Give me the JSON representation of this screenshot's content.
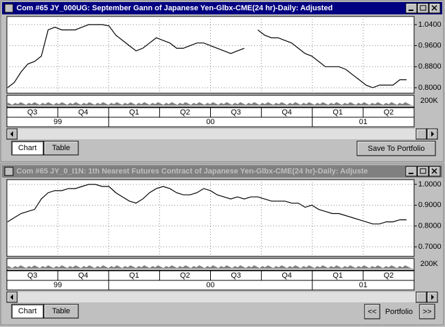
{
  "windows": [
    {
      "title": "Com #65 JY_000UG: September Gann of Japanese Yen-Glbx-CME(24 hr)-Daily: Adjusted",
      "active": true,
      "chart": {
        "type": "line",
        "color": "#000000",
        "values": [
          0.8,
          0.82,
          0.86,
          0.89,
          0.9,
          0.92,
          1.02,
          1.03,
          1.02,
          1.02,
          1.02,
          1.03,
          1.04,
          1.04,
          1.04,
          1.035,
          1.0,
          0.98,
          0.96,
          0.94,
          0.95,
          0.97,
          0.99,
          0.98,
          0.97,
          0.95,
          0.95,
          0.96,
          0.97,
          0.97,
          0.96,
          0.95,
          0.94,
          0.93,
          0.94,
          0.95,
          null,
          1.02,
          1.0,
          0.99,
          0.99,
          0.98,
          0.97,
          0.95,
          0.93,
          0.92,
          0.9,
          0.88,
          0.88,
          0.88,
          0.87,
          0.85,
          0.83,
          0.81,
          0.8,
          0.81,
          0.81,
          0.81,
          0.83,
          0.83
        ],
        "ylim": [
          0.779,
          1.071
        ],
        "yticks": [
          {
            "value": 1.04,
            "label": "1.0400"
          },
          {
            "value": 0.96,
            "label": "0.9600"
          },
          {
            "value": 0.88,
            "label": "0.8800"
          },
          {
            "value": 0.8,
            "label": "0.8000"
          }
        ],
        "volume_tick": "200K",
        "quarters": [
          "Q3",
          "Q4",
          "Q1",
          "Q2",
          "Q3",
          "Q4",
          "Q1",
          "Q2"
        ],
        "years": [
          "99",
          "00",
          "01"
        ]
      },
      "tabs": [
        "Chart",
        "Table"
      ],
      "button": "Save To Portfolio"
    },
    {
      "title": "Com #65 JY_0_I1N: 1th Nearest Futures Contract of Japanese Yen-Glbx-CME(24 hr)-Daily: Adjuste",
      "active": false,
      "chart": {
        "type": "line",
        "color": "#000000",
        "values": [
          0.82,
          0.84,
          0.86,
          0.87,
          0.88,
          0.93,
          0.96,
          0.97,
          0.97,
          0.98,
          0.98,
          0.99,
          1.0,
          1.0,
          0.99,
          0.99,
          0.96,
          0.94,
          0.92,
          0.91,
          0.93,
          0.96,
          0.98,
          0.99,
          0.98,
          0.96,
          0.95,
          0.95,
          0.96,
          0.98,
          0.97,
          0.95,
          0.94,
          0.93,
          0.94,
          0.93,
          0.94,
          0.94,
          0.93,
          0.92,
          0.92,
          0.92,
          0.91,
          0.91,
          0.89,
          0.9,
          0.88,
          0.87,
          0.86,
          0.86,
          0.85,
          0.84,
          0.83,
          0.82,
          0.81,
          0.81,
          0.82,
          0.82,
          0.83,
          0.83
        ],
        "ylim": [
          0.654,
          1.023
        ],
        "yticks": [
          {
            "value": 1.0,
            "label": "1.0000"
          },
          {
            "value": 0.9,
            "label": "0.9000"
          },
          {
            "value": 0.8,
            "label": "0.8000"
          },
          {
            "value": 0.7,
            "label": "0.7000"
          }
        ],
        "volume_tick": "200K",
        "quarters": [
          "Q3",
          "Q4",
          "Q1",
          "Q2",
          "Q3",
          "Q4",
          "Q1",
          "Q2"
        ],
        "years": [
          "99",
          "00",
          "01"
        ]
      },
      "tabs": [
        "Chart",
        "Table"
      ],
      "nav": [
        "<<",
        "Portfolio",
        ">>"
      ]
    }
  ]
}
